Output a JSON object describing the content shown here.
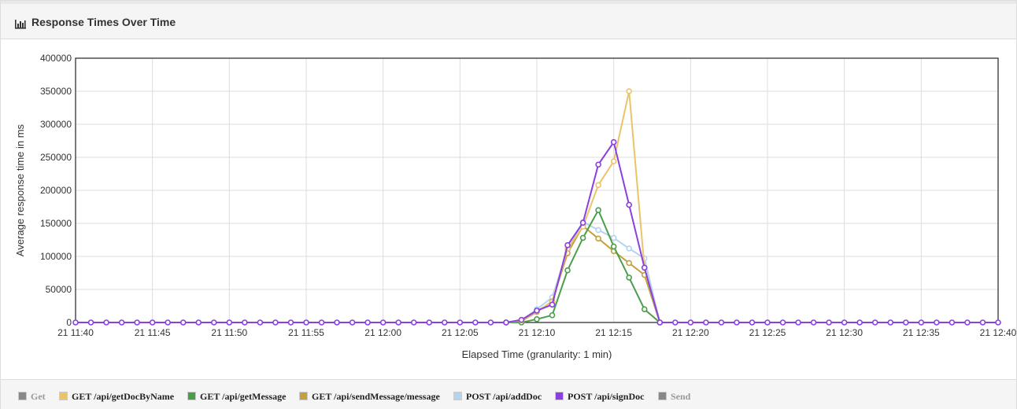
{
  "header": {
    "title": "Response Times Over Time",
    "icon": "bar-chart-icon"
  },
  "chart_data": {
    "type": "line",
    "title": "",
    "xlabel": "Elapsed Time (granularity: 1 min)",
    "ylabel": "Average response time in ms",
    "ylim": [
      0,
      400000
    ],
    "yticks": [
      0,
      50000,
      100000,
      150000,
      200000,
      250000,
      300000,
      350000,
      400000
    ],
    "ytick_labels": [
      "0",
      "50000",
      "100000",
      "150000",
      "200000",
      "250000",
      "300000",
      "350000",
      "400000"
    ],
    "xlim": [
      "21 11:40",
      "21 12:40"
    ],
    "xtick_labels": [
      "21 11:40",
      "21 11:45",
      "21 11:50",
      "21 11:55",
      "21 12:00",
      "21 12:05",
      "21 12:10",
      "21 12:15",
      "21 12:20",
      "21 12:25",
      "21 12:30",
      "21 12:35",
      "21 12:40"
    ],
    "grid": true,
    "legend_position": "bottom",
    "series": [
      {
        "name": "POST /api/addDoc",
        "color": "#b3d4f0",
        "x": [
          "21 12:08",
          "21 12:09",
          "21 12:10",
          "21 12:11",
          "21 12:12",
          "21 12:13",
          "21 12:14",
          "21 12:15",
          "21 12:16",
          "21 12:17",
          "21 12:18"
        ],
        "y": [
          0,
          3000,
          20000,
          38000,
          110000,
          152000,
          140000,
          128000,
          112000,
          97000,
          0
        ]
      },
      {
        "name": "GET /api/sendMessage/message",
        "color": "#c4a13f",
        "x": [
          "21 12:08",
          "21 12:09",
          "21 12:10",
          "21 12:11",
          "21 12:12",
          "21 12:13",
          "21 12:14",
          "21 12:15",
          "21 12:16",
          "21 12:17",
          "21 12:18"
        ],
        "y": [
          0,
          2000,
          16000,
          32000,
          105000,
          146000,
          127000,
          108000,
          90000,
          72000,
          0
        ]
      },
      {
        "name": "GET /api/getMessage",
        "color": "#4a9e4a",
        "x": [
          "21 12:08",
          "21 12:09",
          "21 12:10",
          "21 12:11",
          "21 12:12",
          "21 12:13",
          "21 12:14",
          "21 12:15",
          "21 12:16",
          "21 12:17",
          "21 12:18"
        ],
        "y": [
          0,
          0,
          5000,
          11000,
          79000,
          128000,
          170000,
          115000,
          68000,
          20000,
          0
        ]
      },
      {
        "name": "GET /api/getDocByName",
        "color": "#eac46a",
        "x": [
          "21 12:08",
          "21 12:09",
          "21 12:10",
          "21 12:11",
          "21 12:12",
          "21 12:13",
          "21 12:14",
          "21 12:15",
          "21 12:16",
          "21 12:17",
          "21 12:18"
        ],
        "y": [
          0,
          3000,
          17000,
          31000,
          112000,
          145000,
          208000,
          244000,
          350000,
          83000,
          0
        ]
      },
      {
        "name": "POST /api/signDoc",
        "color": "#8a3fe0",
        "x": [
          "21 11:40",
          "21 11:41",
          "21 11:42",
          "21 11:43",
          "21 11:44",
          "21 11:45",
          "21 11:46",
          "21 11:47",
          "21 11:48",
          "21 11:49",
          "21 11:50",
          "21 11:51",
          "21 11:52",
          "21 11:53",
          "21 11:54",
          "21 11:55",
          "21 11:56",
          "21 11:57",
          "21 11:58",
          "21 11:59",
          "21 12:00",
          "21 12:01",
          "21 12:02",
          "21 12:03",
          "21 12:04",
          "21 12:05",
          "21 12:06",
          "21 12:07",
          "21 12:08",
          "21 12:09",
          "21 12:10",
          "21 12:11",
          "21 12:12",
          "21 12:13",
          "21 12:14",
          "21 12:15",
          "21 12:16",
          "21 12:17",
          "21 12:18",
          "21 12:19",
          "21 12:20",
          "21 12:21",
          "21 12:22",
          "21 12:23",
          "21 12:24",
          "21 12:25",
          "21 12:26",
          "21 12:27",
          "21 12:28",
          "21 12:29",
          "21 12:30",
          "21 12:31",
          "21 12:32",
          "21 12:33",
          "21 12:34",
          "21 12:35",
          "21 12:36",
          "21 12:37",
          "21 12:38",
          "21 12:39",
          "21 12:40"
        ],
        "y": [
          0,
          0,
          0,
          0,
          0,
          0,
          0,
          0,
          0,
          0,
          0,
          0,
          0,
          0,
          0,
          0,
          0,
          0,
          0,
          0,
          0,
          0,
          0,
          0,
          0,
          0,
          0,
          0,
          0,
          4000,
          18000,
          27000,
          117000,
          151000,
          239000,
          273000,
          178000,
          83000,
          0,
          0,
          0,
          0,
          0,
          0,
          0,
          0,
          0,
          0,
          0,
          0,
          0,
          0,
          0,
          0,
          0,
          0,
          0,
          0,
          0,
          0,
          0
        ]
      }
    ]
  },
  "legend": [
    {
      "label": "Get",
      "color": "#888888",
      "enabled": false
    },
    {
      "label": "GET /api/getDocByName",
      "color": "#eac46a",
      "enabled": true
    },
    {
      "label": "GET /api/getMessage",
      "color": "#4a9e4a",
      "enabled": true
    },
    {
      "label": "GET /api/sendMessage/message",
      "color": "#c4a13f",
      "enabled": true
    },
    {
      "label": "POST /api/addDoc",
      "color": "#b3d4f0",
      "enabled": true
    },
    {
      "label": "POST /api/signDoc",
      "color": "#8a3fe0",
      "enabled": true
    },
    {
      "label": "Send",
      "color": "#888888",
      "enabled": false
    }
  ]
}
